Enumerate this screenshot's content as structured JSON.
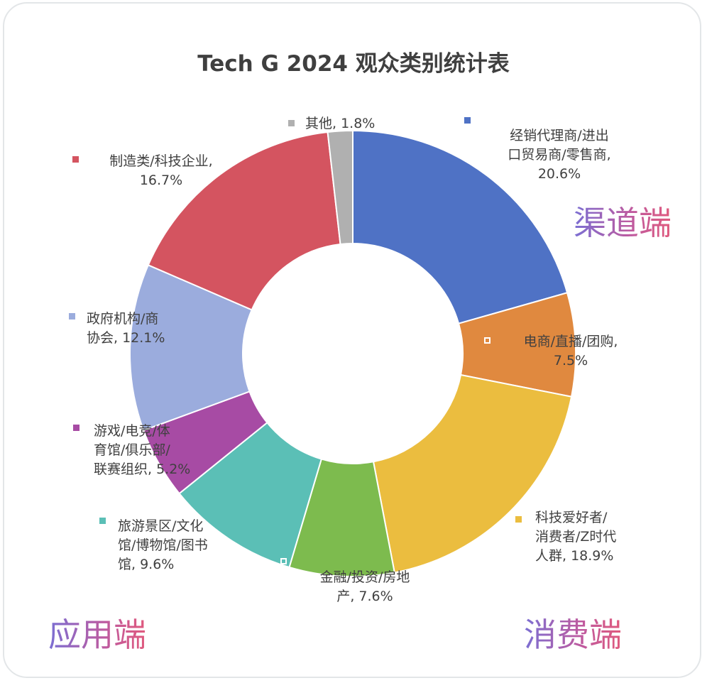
{
  "chart_data": {
    "type": "pie",
    "title": "Tech G 2024 观众类别统计表",
    "donut": true,
    "slices": [
      {
        "name": "经销代理商/进出口贸易商/零售商",
        "label_lines": [
          "经销代理商/进出",
          "口贸易商/零售商,",
          "20.6%"
        ],
        "value": 20.6,
        "color": "#4f72c5"
      },
      {
        "name": "电商/直播/团购",
        "label_lines": [
          "电商/直播/团购,",
          "7.5%"
        ],
        "value": 7.5,
        "color": "#e0893f"
      },
      {
        "name": "科技爱好者/消费者/Z时代人群",
        "label_lines": [
          "科技爱好者/",
          "消费者/Z时代",
          "人群, 18.9%"
        ],
        "value": 18.9,
        "color": "#ebbd3f"
      },
      {
        "name": "金融/投资/房地产",
        "label_lines": [
          "金融/投资/房地",
          "产, 7.6%"
        ],
        "value": 7.6,
        "color": "#7dbb4e"
      },
      {
        "name": "旅游景区/文化馆/博物馆/图书馆",
        "label_lines": [
          "旅游景区/文化",
          "馆/博物馆/图书",
          "馆, 9.6%"
        ],
        "value": 9.6,
        "color": "#5bbfb6"
      },
      {
        "name": "游戏/电竞/体育馆/俱乐部/联赛组织",
        "label_lines": [
          "游戏/电竞/体",
          "育馆/俱乐部/",
          "联赛组织, 5.2%"
        ],
        "value": 5.2,
        "color": "#a74ba4"
      },
      {
        "name": "政府机构/商协会",
        "label_lines": [
          "政府机构/商",
          "协会, 12.1%"
        ],
        "value": 12.1,
        "color": "#9bacdd"
      },
      {
        "name": "制造类/科技企业",
        "label_lines": [
          "制造类/科技企业,",
          "16.7%"
        ],
        "value": 16.7,
        "color": "#d45460"
      },
      {
        "name": "其他",
        "label_lines": [
          "其他, 1.8%"
        ],
        "value": 1.8,
        "color": "#b0b0b0"
      }
    ],
    "groups": [
      "渠道端",
      "消费端",
      "应用端"
    ]
  }
}
